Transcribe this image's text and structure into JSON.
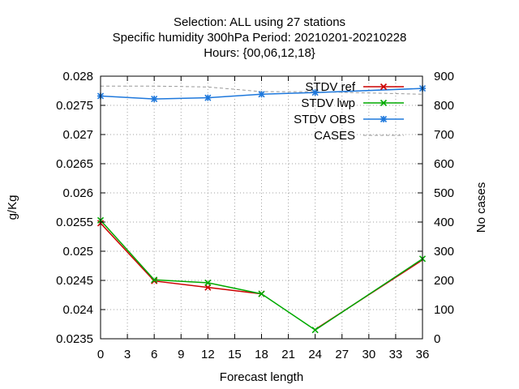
{
  "chart_data": {
    "type": "line",
    "title_lines": [
      "Selection: ALL using    27 stations",
      "Specific humidity 300hPa   Period: 20210201-20210228",
      "Hours: {00,06,12,18}"
    ],
    "xlabel": "Forecast length",
    "ylabel": "g/Kg",
    "y2label": "No cases",
    "xlim": [
      0,
      36
    ],
    "ylim": [
      0.0235,
      0.028
    ],
    "y2lim": [
      0,
      900
    ],
    "xticks": [
      "0",
      "3",
      "6",
      "9",
      "12",
      "15",
      "18",
      "21",
      "24",
      "27",
      "30",
      "33",
      "36"
    ],
    "yticks": [
      "0.0235",
      "0.024",
      "0.0245",
      "0.025",
      "0.0255",
      "0.026",
      "0.0265",
      "0.027",
      "0.0275",
      "0.028"
    ],
    "y2ticks": [
      "0",
      "100",
      "200",
      "300",
      "400",
      "500",
      "600",
      "700",
      "800",
      "900"
    ],
    "grid": true,
    "legend_position": "top-right",
    "series": [
      {
        "name": "STDV ref",
        "axis": "y",
        "color": "#cc0000",
        "marker": "x",
        "x": [
          0,
          6,
          12,
          18
        ],
        "values": [
          0.02548,
          0.02449,
          0.02438,
          0.02427
        ]
      },
      {
        "name": "STDV lwp",
        "axis": "y",
        "color": "#00aa00",
        "marker": "x",
        "x": [
          0,
          6,
          12,
          18,
          24,
          36
        ],
        "values": [
          0.02553,
          0.02451,
          0.02446,
          0.02427,
          0.02365,
          0.02487
        ]
      },
      {
        "name": "STDV OBS",
        "axis": "y",
        "color": "#1e78dc",
        "marker": "asterisk",
        "x": [
          0,
          6,
          12,
          18,
          24,
          36
        ],
        "values": [
          0.02766,
          0.02761,
          0.02763,
          0.02769,
          0.02772,
          0.02779
        ]
      },
      {
        "name": "CASES",
        "axis": "y2",
        "color": "#999999",
        "marker": "none",
        "dashed": true,
        "x": [
          0,
          6,
          12,
          18,
          24,
          36
        ],
        "values": [
          866,
          866,
          863,
          847,
          847,
          838
        ]
      }
    ],
    "extra_segments": [
      {
        "series": "STDV ref",
        "x": [
          24,
          36
        ],
        "values": [
          0.02366,
          0.02485
        ]
      }
    ]
  }
}
